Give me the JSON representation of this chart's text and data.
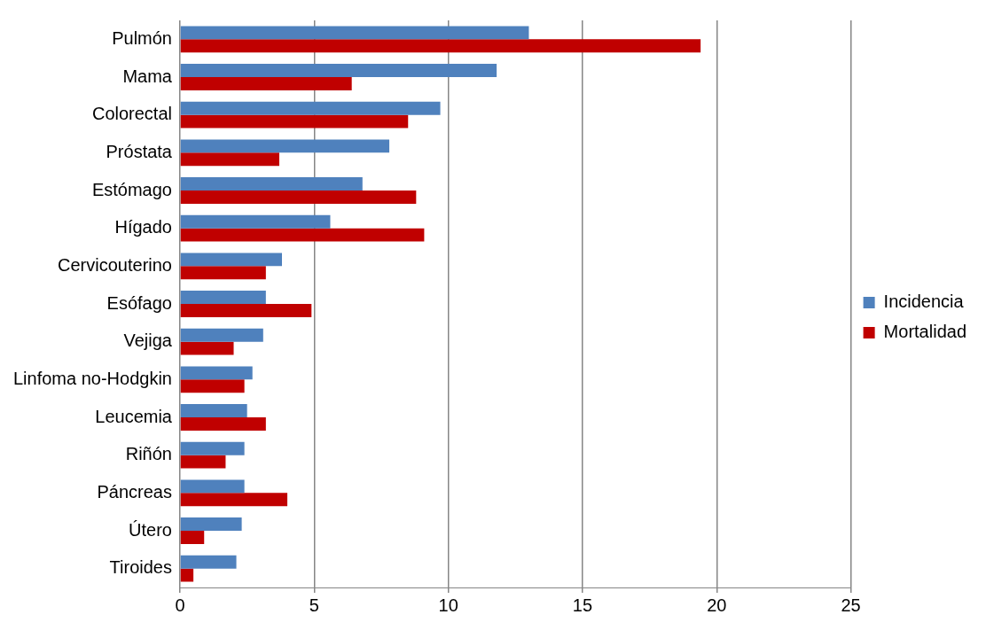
{
  "chart_data": {
    "type": "bar",
    "orientation": "horizontal",
    "categories": [
      "Pulmón",
      "Mama",
      "Colorectal",
      "Próstata",
      "Estómago",
      "Hígado",
      "Cervicouterino",
      "Esófago",
      "Vejiga",
      "Linfoma no-Hodgkin",
      "Leucemia",
      "Riñón",
      "Páncreas",
      "Útero",
      "Tiroides"
    ],
    "series": [
      {
        "name": "Incidencia",
        "color": "#4f81bd",
        "values": [
          13.0,
          11.8,
          9.7,
          7.8,
          6.8,
          5.6,
          3.8,
          3.2,
          3.1,
          2.7,
          2.5,
          2.4,
          2.4,
          2.3,
          2.1
        ]
      },
      {
        "name": "Mortalidad",
        "color": "#c00000",
        "values": [
          19.4,
          6.4,
          8.5,
          3.7,
          8.8,
          9.1,
          3.2,
          4.9,
          2.0,
          2.4,
          3.2,
          1.7,
          4.0,
          0.9,
          0.5
        ]
      }
    ],
    "xlim": [
      0,
      25
    ],
    "xticks": [
      0,
      5,
      10,
      15,
      20,
      25
    ],
    "grid": "x",
    "legend": "right"
  }
}
